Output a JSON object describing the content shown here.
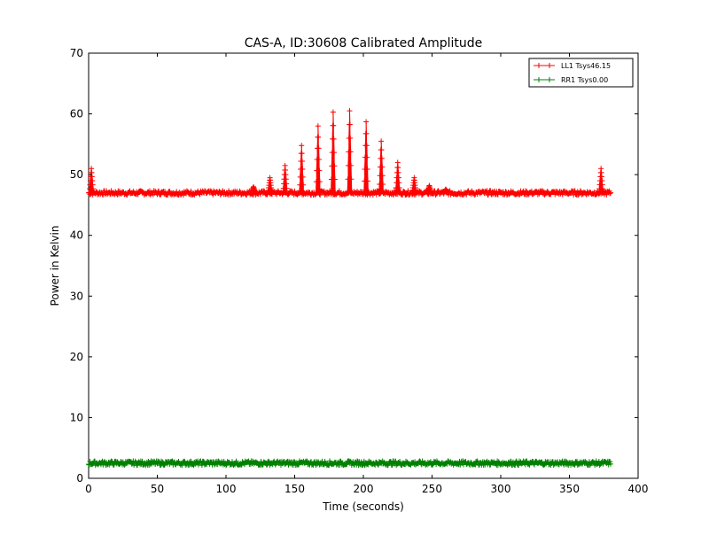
{
  "chart_data": {
    "type": "line",
    "title": "CAS-A, ID:30608 Calibrated Amplitude",
    "xlabel": "Time (seconds)",
    "ylabel": "Power in Kelvin",
    "xlim": [
      0,
      400
    ],
    "ylim": [
      0,
      70
    ],
    "xticks": [
      0,
      50,
      100,
      150,
      200,
      250,
      300,
      350,
      400
    ],
    "yticks": [
      0,
      10,
      20,
      30,
      40,
      50,
      60,
      70
    ],
    "grid": false,
    "legend_position": "top-right",
    "series": [
      {
        "name": "LL1 Tsys46.15",
        "color": "#ff0000",
        "marker": "+",
        "x_range": [
          0,
          380
        ],
        "baseline": 47.0,
        "spikes": [
          {
            "x": 2,
            "y": 51.0
          },
          {
            "x": 120,
            "y": 48.0
          },
          {
            "x": 132,
            "y": 49.5
          },
          {
            "x": 143,
            "y": 51.5
          },
          {
            "x": 155,
            "y": 54.8
          },
          {
            "x": 167,
            "y": 58.0
          },
          {
            "x": 178,
            "y": 60.3
          },
          {
            "x": 190,
            "y": 60.5
          },
          {
            "x": 202,
            "y": 58.7
          },
          {
            "x": 213,
            "y": 55.5
          },
          {
            "x": 225,
            "y": 52.0
          },
          {
            "x": 237,
            "y": 49.5
          },
          {
            "x": 248,
            "y": 48.2
          },
          {
            "x": 260,
            "y": 47.6
          },
          {
            "x": 373,
            "y": 51.0
          }
        ]
      },
      {
        "name": "RR1 Tsys0.00",
        "color": "#008000",
        "marker": "+",
        "x_range": [
          0,
          380
        ],
        "baseline": 2.5,
        "spikes": []
      }
    ]
  }
}
